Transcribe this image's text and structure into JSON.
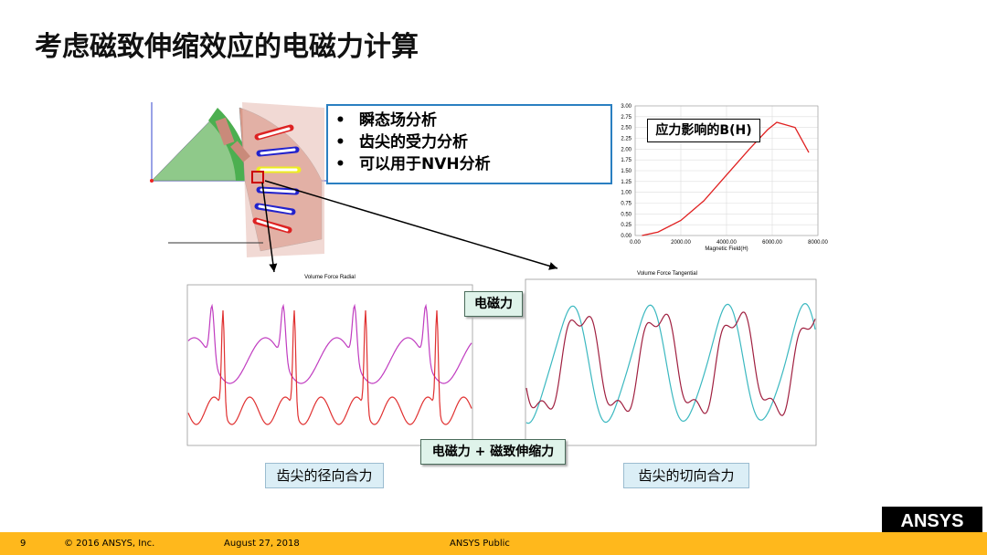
{
  "title": "考虑磁致伸缩效应的电磁力计算",
  "bullets": [
    "瞬态场分析",
    "齿尖的受力分析",
    "可以用于NVH分析"
  ],
  "chart_data": {
    "type": "line",
    "label": "应力影响的B(H)",
    "x_label": "Magnetic Field(H)",
    "xlim": [
      0,
      8000
    ],
    "xticks": [
      {
        "value": 0,
        "label": "0.00"
      },
      {
        "value": 2000,
        "label": "2000.00"
      },
      {
        "value": 4000,
        "label": "4000.00"
      },
      {
        "value": 6000,
        "label": "6000.00"
      },
      {
        "value": 8000,
        "label": "8000.00"
      }
    ],
    "ylim": [
      0,
      3
    ],
    "yticks": [
      {
        "value": 0,
        "label": "0.00"
      },
      {
        "value": 0.25,
        "label": "0.25"
      },
      {
        "value": 0.5,
        "label": "0.50"
      },
      {
        "value": 0.75,
        "label": "0.75"
      },
      {
        "value": 1,
        "label": "1.00"
      },
      {
        "value": 1.25,
        "label": "1.25"
      },
      {
        "value": 1.5,
        "label": "1.50"
      },
      {
        "value": 1.75,
        "label": "1.75"
      },
      {
        "value": 2,
        "label": "2.00"
      },
      {
        "value": 2.25,
        "label": "2.25"
      },
      {
        "value": 2.5,
        "label": "2.50"
      },
      {
        "value": 2.75,
        "label": "2.75"
      },
      {
        "value": 3,
        "label": "3.00"
      }
    ],
    "x": [
      300,
      1000,
      2000,
      3000,
      4000,
      5000,
      5800,
      6200,
      7000,
      7600
    ],
    "values": [
      0,
      0.08,
      0.35,
      0.8,
      1.4,
      2.0,
      2.45,
      2.62,
      2.5,
      1.92
    ],
    "color": "#e02020",
    "grid": true
  },
  "radial_plot": {
    "title": "Volume Force Radial",
    "caption": "齿尖的径向合力"
  },
  "tangential_plot": {
    "title": "Volume Force Tangential",
    "caption": "齿尖的切向合力"
  },
  "callouts": [
    "电磁力",
    "电磁力 + 磁致伸缩力"
  ],
  "footer": {
    "page": "9",
    "copyright": "© 2016 ANSYS, Inc.",
    "date": "August 27, 2018",
    "classification": "ANSYS Public",
    "logo": "ANSYS"
  }
}
